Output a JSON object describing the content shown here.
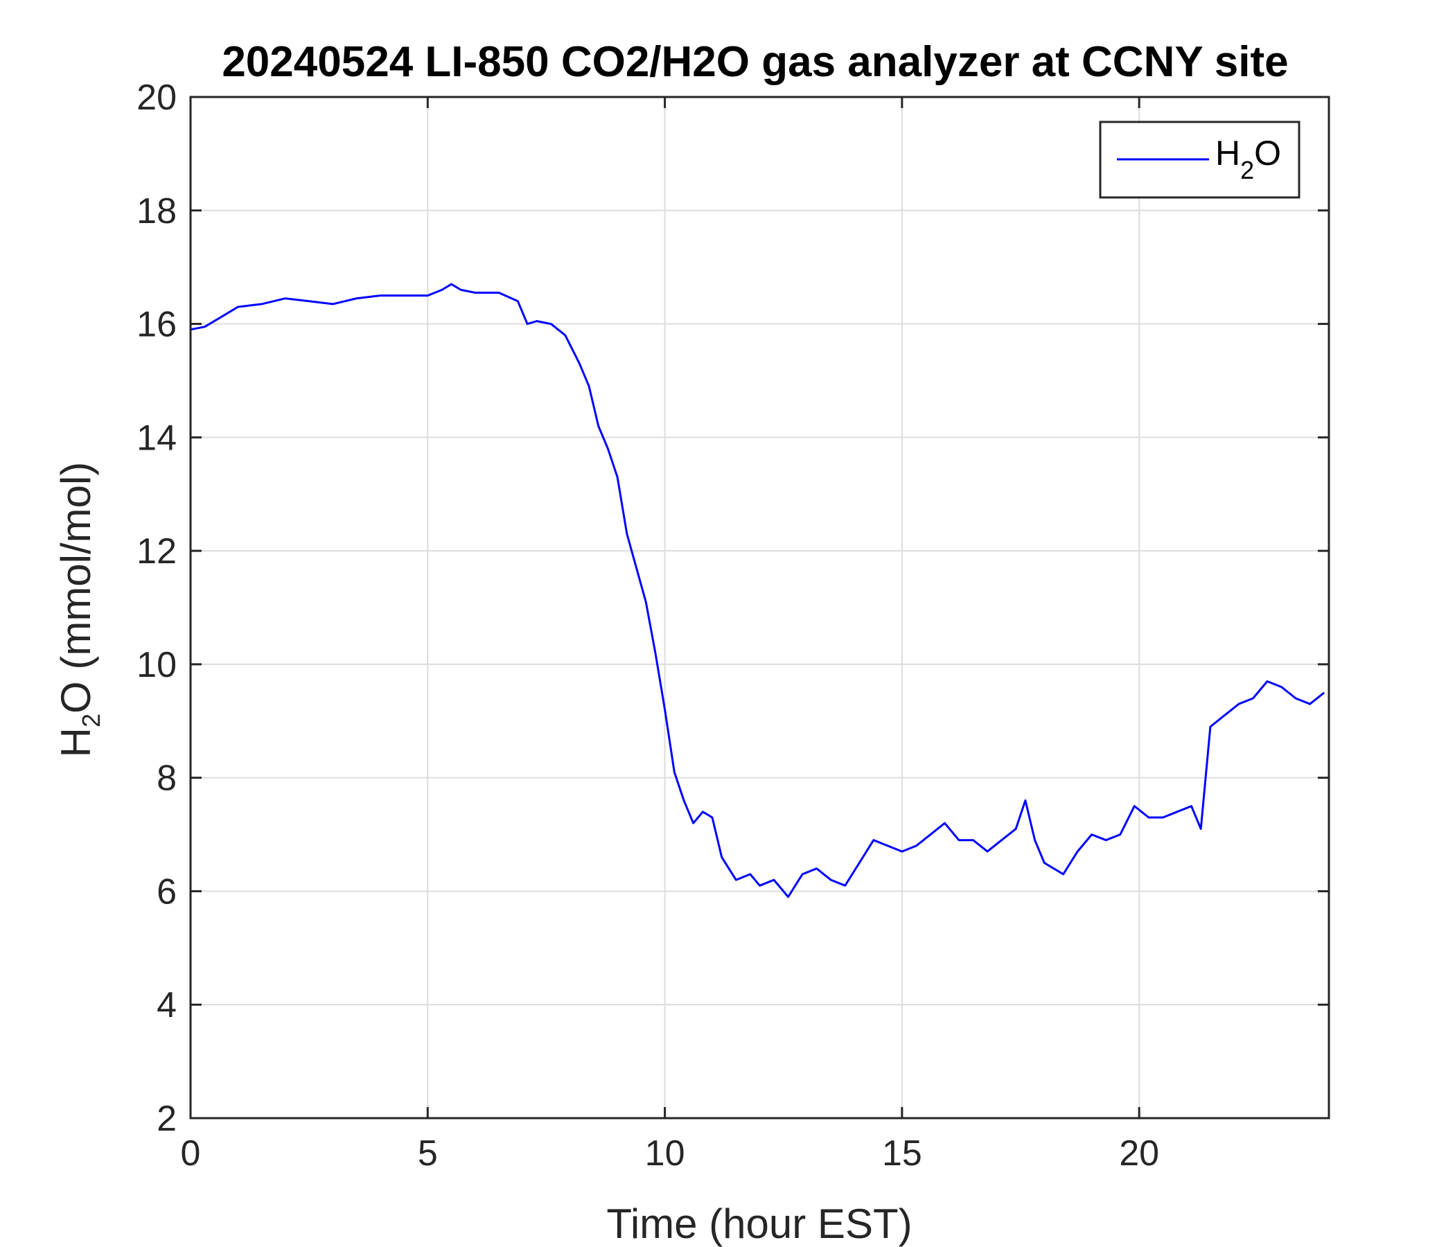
{
  "chart_data": {
    "type": "line",
    "title": "20240524 LI-850 CO2/H2O gas analyzer at CCNY site",
    "xlabel": {
      "main": "Time (hour EST)"
    },
    "ylabel": {
      "base": "H",
      "subscript": "2",
      "rest": "O (mmol/mol)"
    },
    "xlim": [
      0,
      24
    ],
    "ylim": [
      2,
      20
    ],
    "xticks": [
      0,
      5,
      10,
      15,
      20
    ],
    "yticks": [
      2,
      4,
      6,
      8,
      10,
      12,
      14,
      16,
      18,
      20
    ],
    "grid": true,
    "legend_position": "top-right",
    "series": [
      {
        "legend": {
          "base": "H",
          "subscript": "2",
          "rest": "O"
        },
        "color": "#0000ff",
        "x": [
          0,
          0.3,
          0.6,
          1.0,
          1.5,
          2.0,
          2.5,
          3.0,
          3.5,
          4.0,
          4.5,
          5.0,
          5.3,
          5.5,
          5.7,
          6.0,
          6.5,
          6.9,
          7.1,
          7.3,
          7.6,
          7.9,
          8.2,
          8.4,
          8.6,
          8.8,
          9.0,
          9.2,
          9.4,
          9.6,
          9.8,
          10.0,
          10.2,
          10.4,
          10.6,
          10.8,
          11.0,
          11.2,
          11.5,
          11.8,
          12.0,
          12.3,
          12.6,
          12.9,
          13.2,
          13.5,
          13.8,
          14.1,
          14.4,
          14.7,
          15.0,
          15.3,
          15.6,
          15.9,
          16.2,
          16.5,
          16.8,
          17.1,
          17.4,
          17.6,
          17.8,
          18.0,
          18.2,
          18.4,
          18.7,
          19.0,
          19.3,
          19.6,
          19.9,
          20.2,
          20.5,
          20.8,
          21.1,
          21.3,
          21.5,
          21.8,
          22.1,
          22.4,
          22.7,
          23.0,
          23.3,
          23.6,
          23.9
        ],
        "y": [
          15.9,
          15.95,
          16.1,
          16.3,
          16.35,
          16.45,
          16.4,
          16.35,
          16.45,
          16.5,
          16.5,
          16.5,
          16.6,
          16.7,
          16.6,
          16.55,
          16.55,
          16.4,
          16.0,
          16.05,
          16.0,
          15.8,
          15.3,
          14.9,
          14.2,
          13.8,
          13.3,
          12.3,
          11.7,
          11.1,
          10.2,
          9.2,
          8.1,
          7.6,
          7.2,
          7.4,
          7.3,
          6.6,
          6.2,
          6.3,
          6.1,
          6.2,
          5.9,
          6.3,
          6.4,
          6.2,
          6.1,
          6.5,
          6.9,
          6.8,
          6.7,
          6.8,
          7.0,
          7.2,
          6.9,
          6.9,
          6.7,
          6.9,
          7.1,
          7.6,
          6.9,
          6.5,
          6.4,
          6.3,
          6.7,
          7.0,
          6.9,
          7.0,
          7.5,
          7.3,
          7.3,
          7.4,
          7.5,
          7.1,
          8.9,
          9.1,
          9.3,
          9.4,
          9.7,
          9.6,
          9.4,
          9.3,
          9.5
        ]
      }
    ]
  }
}
